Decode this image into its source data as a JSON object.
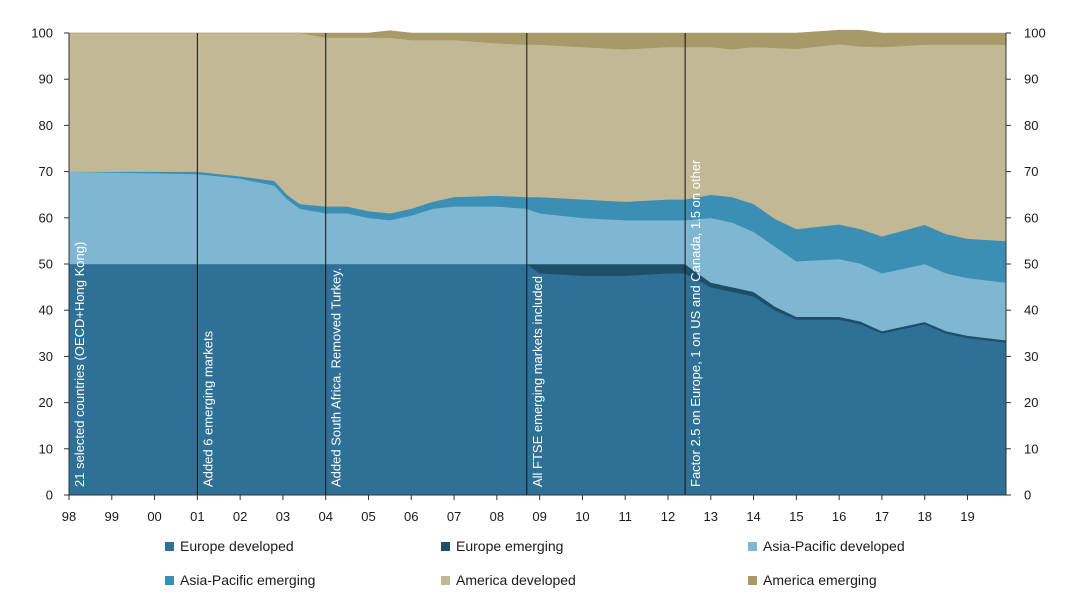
{
  "chart_data": {
    "type": "area",
    "stacked": true,
    "xlim": [
      1998,
      2019.9
    ],
    "ylim": [
      0,
      100
    ],
    "yticks": [
      0,
      10,
      20,
      30,
      40,
      50,
      60,
      70,
      80,
      90,
      100
    ],
    "xtick_labels": [
      "98",
      "99",
      "00",
      "01",
      "02",
      "03",
      "04",
      "05",
      "06",
      "07",
      "08",
      "09",
      "10",
      "11",
      "12",
      "13",
      "14",
      "15",
      "16",
      "17",
      "18",
      "19"
    ],
    "xtick_values": [
      1998,
      1999,
      2000,
      2001,
      2002,
      2003,
      2004,
      2005,
      2006,
      2007,
      2008,
      2009,
      2010,
      2011,
      2012,
      2013,
      2014,
      2015,
      2016,
      2017,
      2018,
      2019
    ],
    "x": [
      1998,
      2001,
      2002,
      2002.8,
      2003.1,
      2003.4,
      2004,
      2004.5,
      2005,
      2005.5,
      2006,
      2006.5,
      2007,
      2008,
      2008.7,
      2009,
      2010,
      2011,
      2012,
      2012.4,
      2013,
      2013.5,
      2014,
      2014.5,
      2015,
      2016,
      2016.5,
      2017,
      2018,
      2018.5,
      2019,
      2019.9
    ],
    "series": [
      {
        "name": "Europe developed",
        "color": "#2f7096",
        "values": [
          50,
          50,
          50,
          50,
          50,
          50,
          50,
          50,
          50,
          50,
          50,
          50,
          50,
          50,
          50,
          48,
          47.5,
          47.5,
          48,
          48,
          45,
          44,
          43,
          40,
          38,
          38,
          37,
          35,
          37,
          35,
          34,
          33
        ]
      },
      {
        "name": "Europe emerging",
        "color": "#1e4f69",
        "values": [
          0,
          0,
          0,
          0,
          0,
          0,
          0,
          0,
          0,
          0,
          0,
          0,
          0,
          0,
          0,
          2,
          2.5,
          2.5,
          2,
          2,
          1,
          1,
          1,
          0.8,
          0.6,
          0.6,
          0.6,
          0.5,
          0.5,
          0.5,
          0.5,
          0.5
        ]
      },
      {
        "name": "Asia-Pacific developed",
        "color": "#7fb7d3",
        "values": [
          20,
          19.5,
          18.5,
          17,
          14,
          12,
          11,
          11,
          10,
          9.5,
          10.5,
          12,
          12.5,
          12.5,
          12,
          11,
          10,
          9.5,
          9.5,
          9.5,
          14,
          14,
          13,
          13,
          12,
          12.5,
          12.5,
          12.5,
          12.5,
          12.5,
          12.5,
          12.5
        ]
      },
      {
        "name": "Asia-Pacific emerging",
        "color": "#3b8fb5",
        "values": [
          0,
          0.5,
          0.5,
          1,
          1,
          1,
          1.5,
          1.5,
          1.5,
          1.5,
          1.5,
          1.5,
          2,
          2.3,
          2.5,
          3.5,
          4,
          4,
          4.5,
          4.5,
          5,
          5.5,
          6,
          6,
          7,
          7.5,
          7.5,
          8,
          8.5,
          8.5,
          8.5,
          9
        ]
      },
      {
        "name": "America developed",
        "color": "#c2b895",
        "values": [
          30,
          30,
          31,
          32,
          35,
          37,
          36.5,
          36.5,
          37.5,
          38,
          36.5,
          35,
          34,
          33,
          33,
          33,
          33,
          33,
          33,
          33,
          32,
          32,
          34,
          37,
          39,
          39,
          39.5,
          41,
          39,
          41,
          42,
          42.5
        ]
      },
      {
        "name": "America emerging",
        "color": "#a79a68",
        "values": [
          0,
          0,
          0,
          0,
          0,
          0,
          1,
          1,
          1,
          1.5,
          1.5,
          1.5,
          1.5,
          2.2,
          2.5,
          2.5,
          3,
          3.5,
          3,
          3,
          3,
          3.5,
          3,
          3.2,
          3.4,
          3,
          3.5,
          3,
          2.5,
          2.5,
          2.5,
          2.5
        ]
      }
    ],
    "event_lines": [
      {
        "x": 1998,
        "label": "21 selected countries (OECD+Hong Kong)"
      },
      {
        "x": 2001,
        "label": "Added 6 emerging markets"
      },
      {
        "x": 2004,
        "label": "Added South Africa. Removed Turkey."
      },
      {
        "x": 2008.7,
        "label": "All FTSE emerging markets included"
      },
      {
        "x": 2012.4,
        "label": "Factor 2.5 on Europe, 1 on US and Canada, 1.5 on other"
      }
    ],
    "legend_position": "bottom"
  },
  "legend": [
    {
      "label": "Europe developed",
      "color": "#2f7096"
    },
    {
      "label": "Europe emerging",
      "color": "#1e4f69"
    },
    {
      "label": "Asia-Pacific developed",
      "color": "#7fb7d3"
    },
    {
      "label": "Asia-Pacific emerging",
      "color": "#3b8fb5"
    },
    {
      "label": "America developed",
      "color": "#c2b895"
    },
    {
      "label": "America emerging",
      "color": "#a79a68"
    }
  ]
}
